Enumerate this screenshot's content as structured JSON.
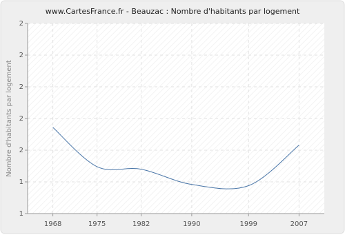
{
  "chart_data": {
    "type": "line",
    "title": "www.CartesFrance.fr - Beauzac : Nombre d'habitants par logement",
    "y_label": "Nombre d'habitants par logement",
    "x": [
      1968,
      1975,
      1982,
      1990,
      1999,
      2007
    ],
    "series": [
      {
        "name": "Beauzac",
        "color": "#4a76a8",
        "values": [
          1.68,
          1.37,
          1.35,
          1.23,
          1.22,
          1.54
        ]
      }
    ],
    "xlim": [
      1964,
      2011
    ],
    "xticks": [
      1968,
      1975,
      1982,
      1990,
      1999,
      2007
    ],
    "ylim": [
      1,
      2.5
    ],
    "yticks": [
      {
        "value": 1,
        "label": "1"
      },
      {
        "value": 1.25,
        "label": "1"
      },
      {
        "value": 1.5,
        "label": "2"
      },
      {
        "value": 1.75,
        "label": "2"
      },
      {
        "value": 2,
        "label": "2"
      },
      {
        "value": 2.25,
        "label": "2"
      },
      {
        "value": 2.5,
        "label": "2"
      }
    ],
    "grid": true
  }
}
